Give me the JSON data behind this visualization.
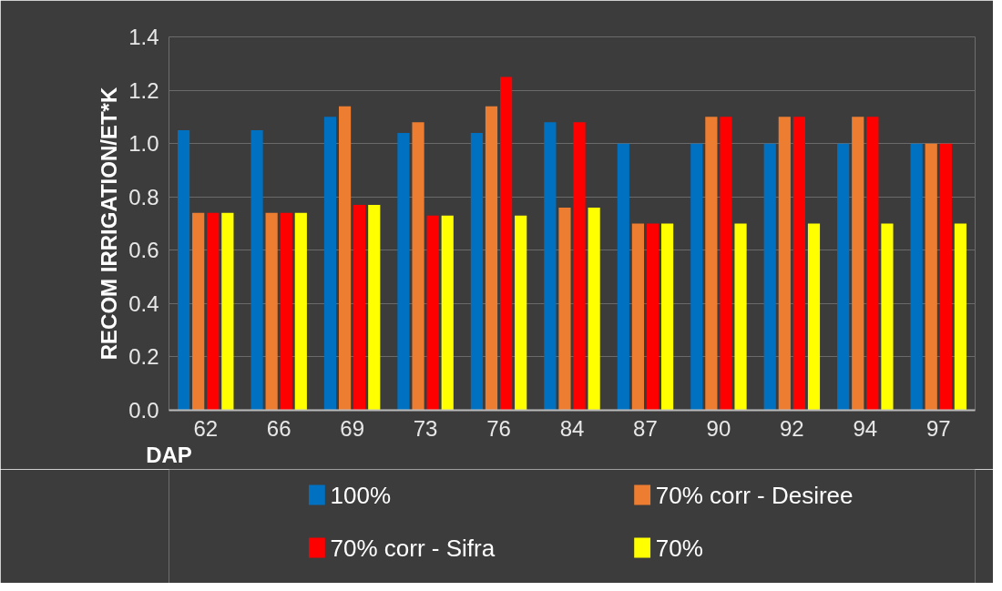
{
  "chart_data": {
    "type": "bar",
    "xlabel": "DAP",
    "ylabel": "RECOM IRRIGATION/ET*K",
    "categories": [
      "62",
      "66",
      "69",
      "73",
      "76",
      "84",
      "87",
      "90",
      "92",
      "94",
      "97"
    ],
    "series": [
      {
        "name": "100%",
        "color": "#0070c0",
        "values": [
          1.05,
          1.05,
          1.1,
          1.04,
          1.04,
          1.08,
          1.0,
          1.0,
          1.0,
          1.0,
          1.0
        ]
      },
      {
        "name": "70% corr - Desiree",
        "color": "#ed7d31",
        "values": [
          0.74,
          0.74,
          1.14,
          1.08,
          1.14,
          0.76,
          0.7,
          1.1,
          1.1,
          1.1,
          1.0
        ]
      },
      {
        "name": "70% corr - Sifra",
        "color": "#ff0000",
        "values": [
          0.74,
          0.74,
          0.77,
          0.73,
          1.25,
          1.08,
          0.7,
          1.1,
          1.1,
          1.1,
          1.0
        ]
      },
      {
        "name": "70%",
        "color": "#ffff00",
        "values": [
          0.74,
          0.74,
          0.77,
          0.73,
          0.73,
          0.76,
          0.7,
          0.7,
          0.7,
          0.7,
          0.7
        ]
      }
    ],
    "ylim": [
      0,
      1.4
    ],
    "yticks": [
      {
        "value": 0,
        "label": "0.0"
      },
      {
        "value": 0.2,
        "label": "0.2"
      },
      {
        "value": 0.4,
        "label": "0.4"
      },
      {
        "value": 0.6,
        "label": "0.6"
      },
      {
        "value": 0.8,
        "label": "0.8"
      },
      {
        "value": 1.0,
        "label": "1.0"
      },
      {
        "value": 1.2,
        "label": "1.2"
      },
      {
        "value": 1.4,
        "label": "1.4"
      }
    ],
    "grid": "y",
    "legend": "bottom"
  }
}
